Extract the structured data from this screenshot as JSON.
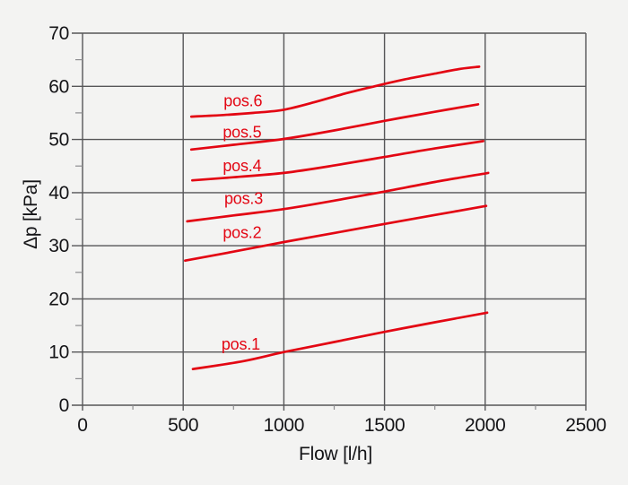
{
  "figure": {
    "description": "Pressure drop vs flow curves for valve positions 1-6"
  },
  "chart_data": {
    "type": "line",
    "title": "",
    "xlabel": "Flow [l/h]",
    "ylabel": "Δp [kPa]",
    "xlim": [
      0,
      2500
    ],
    "ylim": [
      0,
      70
    ],
    "x_major_ticks": [
      0,
      500,
      1000,
      1500,
      2000,
      2500
    ],
    "x_minor_ticks": [
      250,
      750,
      1250,
      1750,
      2250
    ],
    "y_major_ticks": [
      0,
      10,
      20,
      30,
      40,
      50,
      60,
      70
    ],
    "y_minor_ticks": [
      5,
      15,
      25,
      35,
      45,
      55,
      65
    ],
    "grid": "major-both",
    "legend_position": "inline-curve-labels",
    "colors": {
      "curve": "#e30613",
      "curve_label": "#e30613",
      "grid": "#565658",
      "minor_tick": "#8d8d90",
      "text": "#141417",
      "background": "#f3f3f2"
    },
    "series": [
      {
        "name": "pos.1",
        "label": "pos.1",
        "label_anchor": {
          "x": 786,
          "y": 11.5
        },
        "points": [
          [
            548,
            6.8
          ],
          [
            800,
            8.3
          ],
          [
            1000,
            10.0
          ],
          [
            1250,
            11.9
          ],
          [
            1500,
            13.8
          ],
          [
            1750,
            15.6
          ],
          [
            2010,
            17.4
          ]
        ]
      },
      {
        "name": "pos.2",
        "label": "pos.2",
        "label_anchor": {
          "x": 793,
          "y": 32.5
        },
        "points": [
          [
            510,
            27.2
          ],
          [
            750,
            28.9
          ],
          [
            1000,
            30.7
          ],
          [
            1250,
            32.4
          ],
          [
            1500,
            34.1
          ],
          [
            1750,
            35.8
          ],
          [
            2005,
            37.5
          ]
        ]
      },
      {
        "name": "pos.3",
        "label": "pos.3",
        "label_anchor": {
          "x": 800,
          "y": 38.9
        },
        "points": [
          [
            520,
            34.6
          ],
          [
            750,
            35.7
          ],
          [
            1000,
            36.9
          ],
          [
            1250,
            38.5
          ],
          [
            1500,
            40.2
          ],
          [
            1750,
            42.0
          ],
          [
            2015,
            43.7
          ]
        ]
      },
      {
        "name": "pos.4",
        "label": "pos.4",
        "label_anchor": {
          "x": 793,
          "y": 45.0
        },
        "points": [
          [
            545,
            42.3
          ],
          [
            750,
            42.9
          ],
          [
            1000,
            43.7
          ],
          [
            1250,
            45.1
          ],
          [
            1500,
            46.7
          ],
          [
            1750,
            48.3
          ],
          [
            1990,
            49.7
          ]
        ]
      },
      {
        "name": "pos.5",
        "label": "pos.5",
        "label_anchor": {
          "x": 793,
          "y": 51.4
        },
        "points": [
          [
            540,
            48.1
          ],
          [
            750,
            49.0
          ],
          [
            1000,
            50.1
          ],
          [
            1250,
            51.7
          ],
          [
            1500,
            53.5
          ],
          [
            1750,
            55.2
          ],
          [
            1965,
            56.6
          ]
        ]
      },
      {
        "name": "pos.6",
        "label": "pos.6",
        "label_anchor": {
          "x": 797,
          "y": 57.3
        },
        "points": [
          [
            540,
            54.3
          ],
          [
            700,
            54.6
          ],
          [
            850,
            55.0
          ],
          [
            1000,
            55.6
          ],
          [
            1150,
            57.0
          ],
          [
            1300,
            58.6
          ],
          [
            1450,
            60.0
          ],
          [
            1600,
            61.3
          ],
          [
            1750,
            62.4
          ],
          [
            1880,
            63.3
          ],
          [
            1970,
            63.7
          ]
        ]
      }
    ]
  }
}
